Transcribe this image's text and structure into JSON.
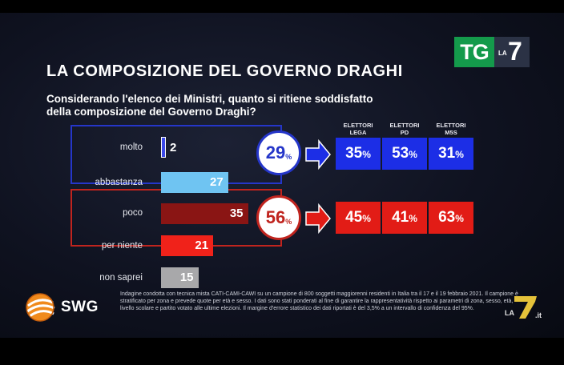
{
  "channel": {
    "tg": "TG",
    "la": "LA",
    "seven": "7"
  },
  "title": "LA COMPOSIZIONE DEL GOVERNO DRAGHI",
  "question": [
    "Considerando l'elenco dei Ministri, quanto si ritiene soddisfatto",
    "della composizione del Governo Draghi?"
  ],
  "colors": {
    "satisfied": "#2536c9",
    "unsatisfied": "#c0241e",
    "molto": "#3a48e8",
    "abbastanza": "#6fc4f2",
    "poco": "#8a1514",
    "per_niente": "#f0221a",
    "non_saprei": "#a8a8aa"
  },
  "chart_data": {
    "type": "bar",
    "title": "LA COMPOSIZIONE DEL GOVERNO DRAGHI",
    "subtitle": "Considerando l'elenco dei Ministri, quanto si ritiene soddisfatto della composizione del Governo Draghi?",
    "categories": [
      "molto",
      "abbastanza",
      "poco",
      "per niente",
      "non saprei"
    ],
    "values": [
      2,
      27,
      35,
      21,
      15
    ],
    "unit": "%",
    "groups": [
      {
        "label": "29",
        "members": [
          "molto",
          "abbastanza"
        ],
        "total": 29,
        "electorates": [
          {
            "name": "ELETTORI LEGA",
            "value": 35
          },
          {
            "name": "ELETTORI PD",
            "value": 53
          },
          {
            "name": "ELETTORI M5S",
            "value": 31
          }
        ]
      },
      {
        "label": "56",
        "members": [
          "poco",
          "per niente"
        ],
        "total": 56,
        "electorates": [
          {
            "name": "ELETTORI LEGA",
            "value": 45
          },
          {
            "name": "ELETTORI PD",
            "value": 41
          },
          {
            "name": "ELETTORI M5S",
            "value": 63
          }
        ]
      }
    ],
    "electorate_headers": [
      [
        "ELETTORI",
        "LEGA"
      ],
      [
        "ELETTORI",
        "PD"
      ],
      [
        "ELETTORI",
        "M5S"
      ]
    ]
  },
  "pct_symbol": "%",
  "source": {
    "brand": "SWG",
    "methodology": "Indagine condotta con tecnica mista CATI-CAMI-CAWI su un campione di 800 soggetti maggiorenni residenti in Italia tra il 17 e il 19 febbraio 2021. Il campione è stratificato per zona e prevede quote per età e sesso. I dati sono stati ponderati al fine di garantire la rappresentatività rispetto ai parametri di zona, sesso, età, livello scolare e partito votato alle ultime elezioni. Il margine d'errore statistico dei dati riportati è del 3,5% a un intervallo di confidenza del 95%."
  },
  "watermark": {
    "la7_it": "LA7.it"
  }
}
